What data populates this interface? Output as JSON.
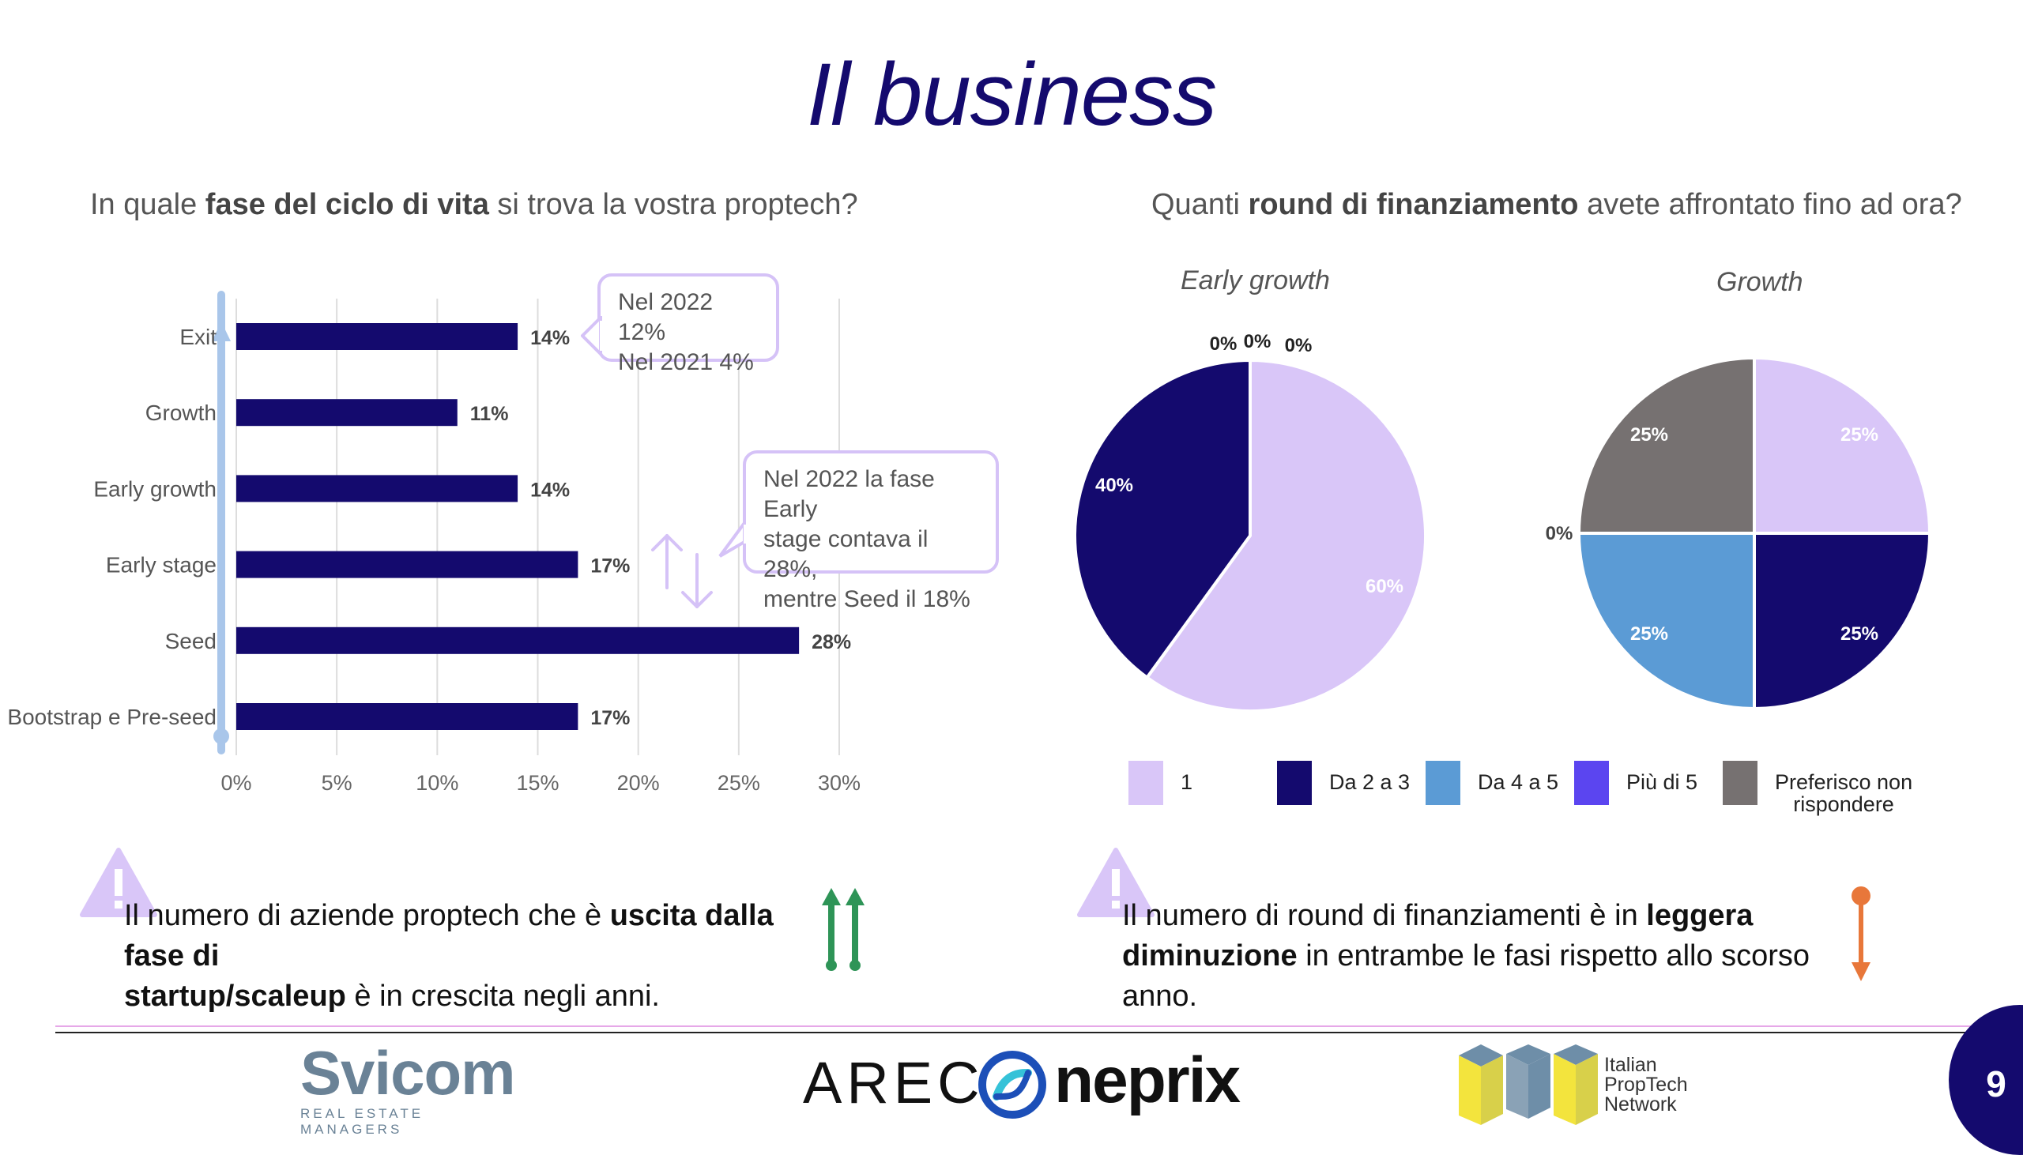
{
  "slide": {
    "title": "Il business",
    "page_number": "9"
  },
  "left": {
    "question": {
      "pre": "In quale ",
      "bold": "fase del ciclo di vita",
      "post": " si trova la vostra proptech?"
    },
    "callout_exit": [
      "Nel 2022 12%",
      "Nel 2021 4%"
    ],
    "callout_seed": [
      "Nel 2022 la fase Early",
      "stage contava il 28%,",
      "mentre Seed il 18%"
    ],
    "insight": {
      "pre": "Il numero di aziende proptech che è ",
      "bold1": "uscita dalla fase di",
      "bold2": "startup/scaleup",
      "post": " è in crescita negli anni."
    }
  },
  "right": {
    "question": {
      "pre": "Quanti ",
      "bold": "round di finanziamento",
      "post": " avete affrontato fino ad ora?"
    },
    "insight": {
      "pre": "Il numero di round di finanziamenti è in ",
      "bold1": "leggera",
      "bold2": "diminuzione",
      "post": " in entrambe le fasi rispetto allo scorso anno."
    }
  },
  "colors": {
    "navy": "#140a6e",
    "lavender": "#d9c6f8",
    "blue": "#5b9bd5",
    "violet": "#5b45f0",
    "gray": "#767171",
    "green": "#2e9457",
    "orange": "#e8773a",
    "title": "#140a6e"
  },
  "icons": {
    "warning": "warning-triangle-icon",
    "up_arrows": "double-up-arrow-icon",
    "down_arrow": "down-arrow-icon",
    "swap_arrows": "swap-arrows-icon"
  },
  "logos": {
    "svicom": "Svicom",
    "svicom_sub": "REAL ESTATE MANAGERS",
    "arec": "AREC",
    "neprix": "neprix",
    "ipn": [
      "Italian",
      "PropTech",
      "Network"
    ]
  },
  "chart_data": [
    {
      "type": "bar",
      "orientation": "horizontal",
      "categories": [
        "Exit",
        "Growth",
        "Early growth",
        "Early stage",
        "Seed",
        "Bootstrap e Pre-seed"
      ],
      "values": [
        14,
        11,
        14,
        17,
        28,
        17
      ],
      "data_labels": [
        "14%",
        "11%",
        "14%",
        "17%",
        "28%",
        "17%"
      ],
      "xlim": [
        0,
        30
      ],
      "xticks": [
        0,
        5,
        10,
        15,
        20,
        25,
        30
      ],
      "xtick_labels": [
        "0%",
        "5%",
        "10%",
        "15%",
        "20%",
        "25%",
        "30%"
      ],
      "grid": "vertical",
      "color": "#140a6e"
    },
    {
      "type": "pie",
      "title": "Early growth",
      "labels": [
        "1",
        "Da 2 a 3",
        "Da 4 a 5",
        "Più di 5",
        "Preferisco non rispondere"
      ],
      "values": [
        60,
        40,
        0,
        0,
        0
      ],
      "data_labels": [
        "60%",
        "40%",
        "0%",
        "0%",
        "0%"
      ],
      "colors": [
        "#d9c6f8",
        "#140a6e",
        "#5b9bd5",
        "#5b45f0",
        "#767171"
      ]
    },
    {
      "type": "pie",
      "title": "Growth",
      "labels": [
        "1",
        "Da 2 a 3",
        "Da 4 a 5",
        "Più di 5",
        "Preferisco non rispondere"
      ],
      "values": [
        25,
        25,
        25,
        0,
        25
      ],
      "data_labels": [
        "25%",
        "25%",
        "25%",
        "0%",
        "25%"
      ],
      "colors": [
        "#d9c6f8",
        "#140a6e",
        "#5b9bd5",
        "#5b45f0",
        "#767171"
      ]
    }
  ],
  "legend": [
    {
      "label": "1",
      "color": "#d9c6f8"
    },
    {
      "label": "Da 2 a 3",
      "color": "#140a6e"
    },
    {
      "label": "Da 4 a 5",
      "color": "#5b9bd5"
    },
    {
      "label": "Più di 5",
      "color": "#5b45f0"
    },
    {
      "label": "Preferisco non",
      "label2": "rispondere",
      "color": "#767171"
    }
  ]
}
